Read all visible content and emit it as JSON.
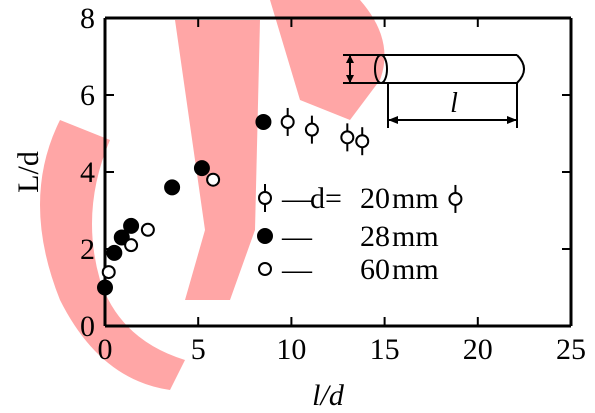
{
  "chart_data": {
    "type": "scatter",
    "title": "",
    "xlabel": "l/d",
    "ylabel": "L/d",
    "xlim": [
      0,
      25
    ],
    "ylim": [
      0,
      8
    ],
    "xticks": [
      0,
      5,
      10,
      15,
      20,
      25
    ],
    "yticks": [
      0,
      2,
      4,
      6,
      8
    ],
    "grid": false,
    "series": [
      {
        "name": "d=20mm",
        "legend_prefix": "d=",
        "legend_value": "20",
        "legend_unit": "mm",
        "marker": "open-circle-errorbar",
        "points": [
          {
            "x": 9.8,
            "y": 5.3
          },
          {
            "x": 11.1,
            "y": 5.1
          },
          {
            "x": 13.0,
            "y": 4.9
          },
          {
            "x": 13.8,
            "y": 4.8
          },
          {
            "x": 18.8,
            "y": 3.3
          }
        ]
      },
      {
        "name": "28mm",
        "legend_value": "28",
        "legend_unit": "mm",
        "marker": "filled-circle",
        "points": [
          {
            "x": 0.0,
            "y": 1.0
          },
          {
            "x": 0.5,
            "y": 1.9
          },
          {
            "x": 0.9,
            "y": 2.3
          },
          {
            "x": 1.4,
            "y": 2.6
          },
          {
            "x": 3.6,
            "y": 3.6
          },
          {
            "x": 5.2,
            "y": 4.1
          },
          {
            "x": 8.5,
            "y": 5.3
          }
        ]
      },
      {
        "name": "60mm",
        "legend_value": "60",
        "legend_unit": "mm",
        "marker": "open-circle",
        "points": [
          {
            "x": 0.2,
            "y": 1.4
          },
          {
            "x": 1.4,
            "y": 2.1
          },
          {
            "x": 2.3,
            "y": 2.5
          },
          {
            "x": 5.8,
            "y": 3.8
          }
        ]
      }
    ],
    "inset": {
      "label": "l"
    },
    "legend_dash": "—",
    "watermark_color": "#ff0000"
  }
}
